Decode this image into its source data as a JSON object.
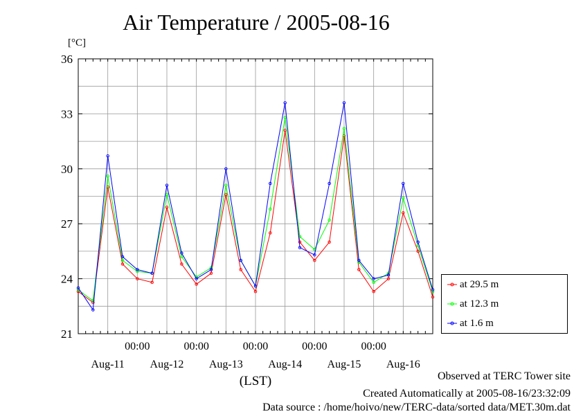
{
  "chart_data": {
    "type": "line",
    "title": "Air Temperature / 2005-08-16",
    "ylabel": "[°C]",
    "xlabel": "(LST)",
    "ylim": [
      21,
      36
    ],
    "yticks": [
      21,
      24,
      27,
      30,
      33,
      36
    ],
    "xlim": [
      0,
      6
    ],
    "x_unit": "days since 2005-08-10 00:00 LST",
    "x_gridlines_hours": [
      "00:00",
      "00:00",
      "00:00",
      "00:00",
      "00:00"
    ],
    "x_day_labels": [
      "Aug-11",
      "Aug-12",
      "Aug-13",
      "Aug-14",
      "Aug-15",
      "Aug-16"
    ],
    "grid": true,
    "legend_placement": "right-bottom, outside plot",
    "series": [
      {
        "name": "at 29.5 m",
        "color": "#ff0000",
        "x": [
          0,
          0.25,
          0.5,
          0.75,
          1,
          1.25,
          1.5,
          1.75,
          2,
          2.25,
          2.5,
          2.75,
          3,
          3.25,
          3.5,
          3.75,
          4,
          4.25,
          4.5,
          4.75,
          5,
          5.25,
          5.5,
          5.75,
          6
        ],
        "values": [
          23.3,
          22.7,
          29.0,
          24.8,
          24.0,
          23.8,
          27.9,
          24.8,
          23.7,
          24.3,
          28.6,
          24.5,
          23.3,
          26.5,
          32.1,
          26.0,
          25.0,
          26.0,
          31.8,
          24.5,
          23.3,
          24.0,
          27.6,
          25.5,
          23.0
        ]
      },
      {
        "name": "at 12.3 m",
        "color": "#00ff00",
        "x": [
          0,
          0.25,
          0.5,
          0.75,
          1,
          1.25,
          1.5,
          1.75,
          2,
          2.25,
          2.5,
          2.75,
          3,
          3.25,
          3.5,
          3.75,
          4,
          4.25,
          4.5,
          4.75,
          5,
          5.25,
          5.5,
          5.75,
          6
        ],
        "values": [
          23.4,
          22.8,
          29.6,
          25.0,
          24.4,
          24.3,
          28.6,
          25.2,
          24.1,
          24.6,
          29.1,
          25.0,
          23.6,
          27.8,
          32.8,
          26.3,
          25.6,
          27.2,
          32.2,
          24.9,
          23.8,
          24.3,
          28.4,
          25.8,
          23.3
        ]
      },
      {
        "name": "at 1.6 m",
        "color": "#0000ff",
        "x": [
          0,
          0.25,
          0.5,
          0.75,
          1,
          1.25,
          1.5,
          1.75,
          2,
          2.25,
          2.5,
          2.75,
          3,
          3.25,
          3.5,
          3.75,
          4,
          4.25,
          4.5,
          4.75,
          5,
          5.25,
          5.5,
          5.75,
          6
        ],
        "values": [
          23.5,
          22.3,
          30.7,
          25.2,
          24.5,
          24.3,
          29.1,
          25.4,
          24.0,
          24.5,
          30.0,
          25.0,
          23.6,
          29.2,
          33.6,
          25.7,
          25.3,
          29.2,
          33.6,
          25.0,
          24.0,
          24.2,
          29.2,
          26.0,
          23.4
        ]
      }
    ]
  },
  "footer": {
    "line1": "Observed at TERC Tower site",
    "line2": "Created Automatically at 2005-08-16/23:32:09",
    "line3": "Data source : /home/hoivo/new/TERC-data/sorted  data/MET.30m.dat"
  }
}
